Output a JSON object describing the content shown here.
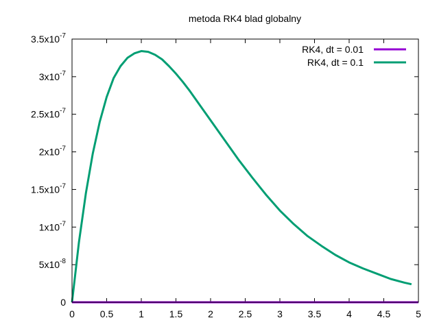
{
  "chart_data": {
    "type": "line",
    "title": "metoda  RK4 blad globalny",
    "xlabel": "",
    "ylabel": "",
    "xlim": [
      0,
      5
    ],
    "ylim": [
      0,
      3.5e-07
    ],
    "grid": false,
    "legend_position": "top-right",
    "x_ticks": [
      {
        "value": 0,
        "label": "0"
      },
      {
        "value": 0.5,
        "label": "0.5"
      },
      {
        "value": 1,
        "label": "1"
      },
      {
        "value": 1.5,
        "label": "1.5"
      },
      {
        "value": 2,
        "label": "2"
      },
      {
        "value": 2.5,
        "label": "2.5"
      },
      {
        "value": 3,
        "label": "3"
      },
      {
        "value": 3.5,
        "label": "3.5"
      },
      {
        "value": 4,
        "label": "4"
      },
      {
        "value": 4.5,
        "label": "4.5"
      },
      {
        "value": 5,
        "label": "5"
      }
    ],
    "y_ticks": [
      {
        "value": 0,
        "mantissa": "0",
        "exponent": ""
      },
      {
        "value": 5e-08,
        "mantissa": "5x10",
        "exponent": "-8"
      },
      {
        "value": 1e-07,
        "mantissa": "1x10",
        "exponent": "-7"
      },
      {
        "value": 1.5e-07,
        "mantissa": "1.5x10",
        "exponent": "-7"
      },
      {
        "value": 2e-07,
        "mantissa": "2x10",
        "exponent": "-7"
      },
      {
        "value": 2.5e-07,
        "mantissa": "2.5x10",
        "exponent": "-7"
      },
      {
        "value": 3e-07,
        "mantissa": "3x10",
        "exponent": "-7"
      },
      {
        "value": 3.5e-07,
        "mantissa": "3.5x10",
        "exponent": "-7"
      }
    ],
    "series": [
      {
        "name": "RK4, dt = 0.01",
        "color": "#9400d3",
        "x": [
          0,
          0.5,
          1,
          1.5,
          2,
          2.5,
          3,
          3.5,
          4,
          4.5,
          5
        ],
        "y": [
          0,
          0,
          0,
          0,
          0,
          0,
          0,
          0,
          0,
          0,
          0
        ]
      },
      {
        "name": "RK4, dt = 0.1",
        "color": "#009e73",
        "x": [
          0,
          0.1,
          0.2,
          0.3,
          0.4,
          0.5,
          0.6,
          0.7,
          0.8,
          0.9,
          1.0,
          1.1,
          1.2,
          1.3,
          1.4,
          1.5,
          1.6,
          1.7,
          1.8,
          1.9,
          2.0,
          2.2,
          2.4,
          2.6,
          2.8,
          3.0,
          3.2,
          3.4,
          3.6,
          3.8,
          4.0,
          4.2,
          4.4,
          4.6,
          4.8,
          4.9
        ],
        "y": [
          0,
          8e-08,
          1.45e-07,
          1.98e-07,
          2.4e-07,
          2.73e-07,
          2.98e-07,
          3.14e-07,
          3.25e-07,
          3.31e-07,
          3.34e-07,
          3.33e-07,
          3.29e-07,
          3.23e-07,
          3.14e-07,
          3.04e-07,
          2.93e-07,
          2.81e-07,
          2.68e-07,
          2.55e-07,
          2.42e-07,
          2.16e-07,
          1.9e-07,
          1.66e-07,
          1.43e-07,
          1.22e-07,
          1.04e-07,
          8.8e-08,
          7.5e-08,
          6.3e-08,
          5.3e-08,
          4.5e-08,
          3.8e-08,
          3.1e-08,
          2.6e-08,
          2.4e-08
        ]
      }
    ]
  }
}
